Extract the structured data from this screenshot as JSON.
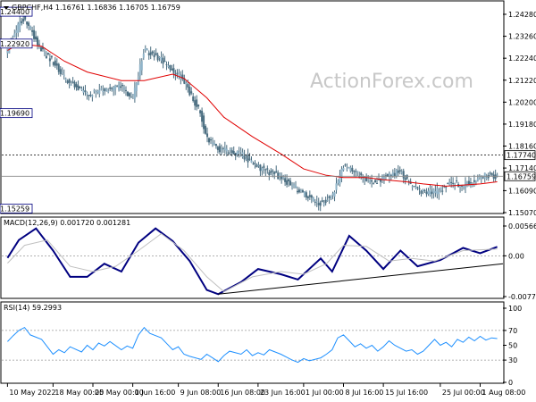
{
  "chart_data": [
    {
      "type": "candlestick",
      "symbol_line": "GBPCHF,H4  1.16761 1.16836 1.16705 1.16759",
      "watermark": "ActionForex.com",
      "y_ticks": [
        "1.24280",
        "1.23260",
        "1.22240",
        "1.21220",
        "1.20200",
        "1.19180",
        "1.18160",
        "1.17140",
        "1.16090",
        "1.15070"
      ],
      "ylim": [
        1.1507,
        1.2428
      ],
      "price_tags": [
        {
          "label": "1.17740",
          "value": 1.1774
        },
        {
          "label": "1.16759",
          "value": 1.16759
        }
      ],
      "annotations": [
        {
          "label": "1.24400",
          "value": 1.244,
          "date": "12 May 2022"
        },
        {
          "label": "1.22920",
          "value": 1.2292,
          "date": "3 Jun 2022"
        },
        {
          "label": "1.19690",
          "value": 1.1969,
          "date": "26 May 2022"
        },
        {
          "label": "1.15259",
          "value": 1.15259,
          "date": "5 Jul 2022"
        }
      ],
      "close_path": [
        [
          "2022-05-10",
          1.226
        ],
        [
          "2022-05-12",
          1.238
        ],
        [
          "2022-05-13",
          1.241
        ],
        [
          "2022-05-16",
          1.226
        ],
        [
          "2022-05-18",
          1.221
        ],
        [
          "2022-05-20",
          1.213
        ],
        [
          "2022-05-24",
          1.205
        ],
        [
          "2022-05-26",
          1.207
        ],
        [
          "2022-05-30",
          1.209
        ],
        [
          "2022-06-01",
          1.204
        ],
        [
          "2022-06-03",
          1.226
        ],
        [
          "2022-06-06",
          1.222
        ],
        [
          "2022-06-08",
          1.217
        ],
        [
          "2022-06-10",
          1.212
        ],
        [
          "2022-06-13",
          1.196
        ],
        [
          "2022-06-14",
          1.185
        ],
        [
          "2022-06-16",
          1.18
        ],
        [
          "2022-06-20",
          1.178
        ],
        [
          "2022-06-23",
          1.172
        ],
        [
          "2022-06-27",
          1.167
        ],
        [
          "2022-06-30",
          1.161
        ],
        [
          "2022-07-04",
          1.155
        ],
        [
          "2022-07-06",
          1.158
        ],
        [
          "2022-07-08",
          1.172
        ],
        [
          "2022-07-11",
          1.168
        ],
        [
          "2022-07-13",
          1.164
        ],
        [
          "2022-07-15",
          1.167
        ],
        [
          "2022-07-18",
          1.17
        ],
        [
          "2022-07-20",
          1.163
        ],
        [
          "2022-07-22",
          1.16
        ],
        [
          "2022-07-25",
          1.161
        ],
        [
          "2022-07-27",
          1.165
        ],
        [
          "2022-07-29",
          1.163
        ],
        [
          "2022-08-02",
          1.168
        ],
        [
          "2022-08-04",
          1.1676
        ]
      ],
      "moving_average": [
        [
          "2022-05-10",
          1.226
        ],
        [
          "2022-05-12",
          1.229
        ],
        [
          "2022-05-16",
          1.228
        ],
        [
          "2022-05-20",
          1.221
        ],
        [
          "2022-05-24",
          1.216
        ],
        [
          "2022-05-30",
          1.212
        ],
        [
          "2022-06-03",
          1.212
        ],
        [
          "2022-06-08",
          1.215
        ],
        [
          "2022-06-10",
          1.213
        ],
        [
          "2022-06-14",
          1.204
        ],
        [
          "2022-06-17",
          1.195
        ],
        [
          "2022-06-22",
          1.186
        ],
        [
          "2022-06-27",
          1.178
        ],
        [
          "2022-07-01",
          1.171
        ],
        [
          "2022-07-05",
          1.168
        ],
        [
          "2022-07-08",
          1.167
        ],
        [
          "2022-07-12",
          1.167
        ],
        [
          "2022-07-15",
          1.166
        ],
        [
          "2022-07-19",
          1.165
        ],
        [
          "2022-07-22",
          1.164
        ],
        [
          "2022-07-26",
          1.163
        ],
        [
          "2022-08-01",
          1.164
        ],
        [
          "2022-08-04",
          1.165
        ]
      ],
      "x_ticks": [
        "10 May 2022",
        "18 May 00:00",
        "25 May 00:00",
        "1 Jun 16:00",
        "9 Jun 08:00",
        "16 Jun 08:00",
        "23 Jun 16:00",
        "1 Jul 00:00",
        "8 Jul 16:00",
        "15 Jul 16:00",
        "25 Jul 00:00",
        "1 Aug 08:00"
      ],
      "x_tick_dates": [
        "2022-05-10",
        "2022-05-18",
        "2022-05-25",
        "2022-06-01",
        "2022-06-09",
        "2022-06-16",
        "2022-06-23",
        "2022-07-01",
        "2022-07-08",
        "2022-07-15",
        "2022-07-25",
        "2022-08-01"
      ],
      "xlim": [
        "2022-05-09",
        "2022-08-05"
      ]
    },
    {
      "type": "line",
      "title": "MACD(12,26,9) 0.001720 0.001281",
      "y_ticks": [
        "0.005664",
        "0.00",
        "-0.00775"
      ],
      "ylim": [
        -0.00775,
        0.005664
      ],
      "zero_tick": "0.00",
      "series": [
        {
          "color": "#000080",
          "values": [
            [
              "2022-05-10",
              -0.0004
            ],
            [
              "2022-05-12",
              0.003
            ],
            [
              "2022-05-15",
              0.0052
            ],
            [
              "2022-05-18",
              0.001
            ],
            [
              "2022-05-21",
              -0.004
            ],
            [
              "2022-05-24",
              -0.004
            ],
            [
              "2022-05-27",
              -0.0015
            ],
            [
              "2022-05-30",
              -0.003
            ],
            [
              "2022-06-02",
              0.0025
            ],
            [
              "2022-06-05",
              0.0052
            ],
            [
              "2022-06-08",
              0.0028
            ],
            [
              "2022-06-11",
              -0.001
            ],
            [
              "2022-06-14",
              -0.0065
            ],
            [
              "2022-06-16",
              -0.0073
            ],
            [
              "2022-06-20",
              -0.005
            ],
            [
              "2022-06-23",
              -0.0025
            ],
            [
              "2022-06-27",
              -0.0035
            ],
            [
              "2022-06-30",
              -0.0045
            ],
            [
              "2022-07-04",
              -0.0005
            ],
            [
              "2022-07-06",
              -0.003
            ],
            [
              "2022-07-09",
              0.0038
            ],
            [
              "2022-07-12",
              0.001
            ],
            [
              "2022-07-15",
              -0.0025
            ],
            [
              "2022-07-18",
              0.001
            ],
            [
              "2022-07-21",
              -0.002
            ],
            [
              "2022-07-25",
              -0.0008
            ],
            [
              "2022-07-29",
              0.0015
            ],
            [
              "2022-08-01",
              0.0005
            ],
            [
              "2022-08-04",
              0.0017
            ]
          ]
        },
        {
          "color": "#c0c0c0",
          "values": [
            [
              "2022-05-10",
              -0.0014
            ],
            [
              "2022-05-13",
              0.002
            ],
            [
              "2022-05-17",
              0.003
            ],
            [
              "2022-05-21",
              -0.002
            ],
            [
              "2022-05-25",
              -0.003
            ],
            [
              "2022-05-29",
              -0.002
            ],
            [
              "2022-06-02",
              0.001
            ],
            [
              "2022-06-06",
              0.0042
            ],
            [
              "2022-06-10",
              0.001
            ],
            [
              "2022-06-14",
              -0.004
            ],
            [
              "2022-06-17",
              -0.0068
            ],
            [
              "2022-06-22",
              -0.004
            ],
            [
              "2022-06-27",
              -0.003
            ],
            [
              "2022-07-01",
              -0.0035
            ],
            [
              "2022-07-05",
              -0.0015
            ],
            [
              "2022-07-08",
              0.002
            ],
            [
              "2022-07-12",
              0.0018
            ],
            [
              "2022-07-16",
              -0.001
            ],
            [
              "2022-07-20",
              -0.0005
            ],
            [
              "2022-07-24",
              -0.001
            ],
            [
              "2022-07-29",
              0.001
            ],
            [
              "2022-08-04",
              0.0013
            ]
          ]
        },
        {
          "color": "#000000",
          "values": [
            [
              "2022-06-16",
              -0.0073
            ],
            [
              "2022-08-05",
              -0.0015
            ]
          ]
        }
      ]
    },
    {
      "type": "line",
      "title": "RSI(14) 59.2993",
      "y_ticks": [
        "100",
        "70",
        "50",
        "30",
        "0"
      ],
      "ylim": [
        0,
        100
      ],
      "levels": [
        70,
        30
      ],
      "series": [
        {
          "color": "#1e90ff",
          "values": [
            [
              "2022-05-10",
              55
            ],
            [
              "2022-05-11",
              63
            ],
            [
              "2022-05-12",
              70
            ],
            [
              "2022-05-13",
              74
            ],
            [
              "2022-05-14",
              64
            ],
            [
              "2022-05-16",
              58
            ],
            [
              "2022-05-17",
              48
            ],
            [
              "2022-05-18",
              38
            ],
            [
              "2022-05-19",
              44
            ],
            [
              "2022-05-20",
              40
            ],
            [
              "2022-05-21",
              48
            ],
            [
              "2022-05-23",
              41
            ],
            [
              "2022-05-24",
              50
            ],
            [
              "2022-05-25",
              44
            ],
            [
              "2022-05-26",
              53
            ],
            [
              "2022-05-27",
              49
            ],
            [
              "2022-05-28",
              55
            ],
            [
              "2022-05-30",
              44
            ],
            [
              "2022-05-31",
              49
            ],
            [
              "2022-06-01",
              46
            ],
            [
              "2022-06-02",
              64
            ],
            [
              "2022-06-03",
              74
            ],
            [
              "2022-06-04",
              66
            ],
            [
              "2022-06-06",
              60
            ],
            [
              "2022-06-07",
              52
            ],
            [
              "2022-06-08",
              44
            ],
            [
              "2022-06-09",
              48
            ],
            [
              "2022-06-10",
              38
            ],
            [
              "2022-06-11",
              35
            ],
            [
              "2022-06-13",
              31
            ],
            [
              "2022-06-14",
              38
            ],
            [
              "2022-06-15",
              33
            ],
            [
              "2022-06-16",
              28
            ],
            [
              "2022-06-17",
              36
            ],
            [
              "2022-06-18",
              42
            ],
            [
              "2022-06-20",
              38
            ],
            [
              "2022-06-21",
              44
            ],
            [
              "2022-06-22",
              36
            ],
            [
              "2022-06-23",
              40
            ],
            [
              "2022-06-24",
              37
            ],
            [
              "2022-06-25",
              44
            ],
            [
              "2022-06-27",
              38
            ],
            [
              "2022-06-28",
              34
            ],
            [
              "2022-06-29",
              30
            ],
            [
              "2022-06-30",
              27
            ],
            [
              "2022-07-01",
              32
            ],
            [
              "2022-07-02",
              29
            ],
            [
              "2022-07-04",
              33
            ],
            [
              "2022-07-05",
              38
            ],
            [
              "2022-07-06",
              44
            ],
            [
              "2022-07-07",
              60
            ],
            [
              "2022-07-08",
              64
            ],
            [
              "2022-07-09",
              56
            ],
            [
              "2022-07-10",
              48
            ],
            [
              "2022-07-11",
              52
            ],
            [
              "2022-07-12",
              46
            ],
            [
              "2022-07-13",
              50
            ],
            [
              "2022-07-14",
              42
            ],
            [
              "2022-07-15",
              48
            ],
            [
              "2022-07-16",
              56
            ],
            [
              "2022-07-17",
              50
            ],
            [
              "2022-07-18",
              46
            ],
            [
              "2022-07-19",
              42
            ],
            [
              "2022-07-20",
              44
            ],
            [
              "2022-07-21",
              38
            ],
            [
              "2022-07-22",
              42
            ],
            [
              "2022-07-23",
              50
            ],
            [
              "2022-07-24",
              58
            ],
            [
              "2022-07-25",
              50
            ],
            [
              "2022-07-26",
              54
            ],
            [
              "2022-07-27",
              48
            ],
            [
              "2022-07-28",
              58
            ],
            [
              "2022-07-29",
              54
            ],
            [
              "2022-07-30",
              61
            ],
            [
              "2022-07-31",
              56
            ],
            [
              "2022-08-01",
              62
            ],
            [
              "2022-08-02",
              57
            ],
            [
              "2022-08-03",
              60
            ],
            [
              "2022-08-04",
              59
            ]
          ]
        }
      ]
    }
  ]
}
